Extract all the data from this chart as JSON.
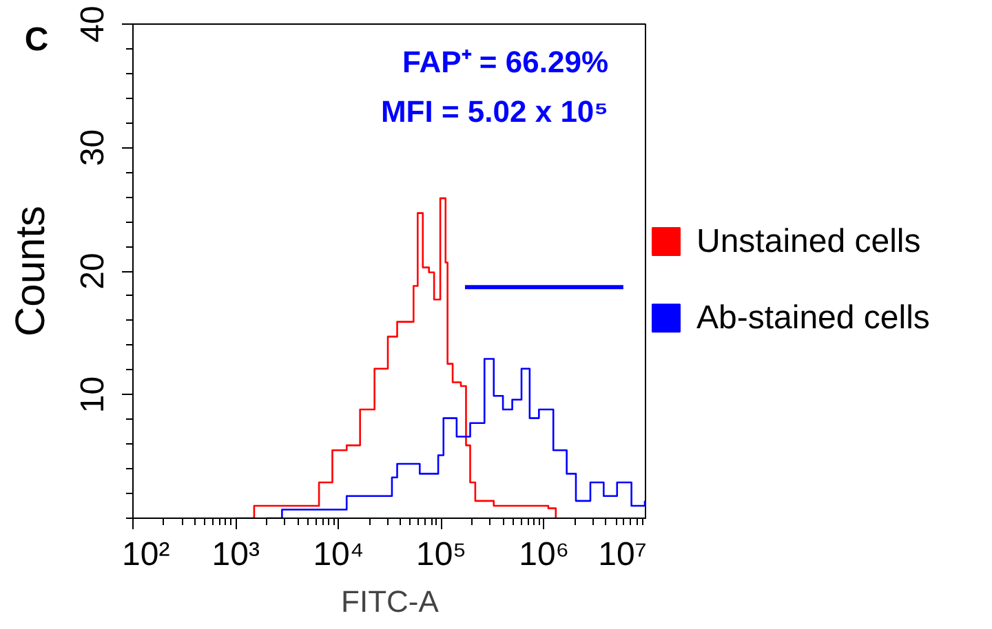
{
  "chart_data": {
    "type": "step",
    "xlabel": "FITC-A",
    "ylabel": "Counts",
    "annotations": [
      "C",
      "FAP⁺ = 66.29%",
      "MFI = 5.02 x 10⁵"
    ],
    "series": [
      {
        "name": "Unstained cells",
        "color": "#ff0000",
        "x": [
          1000,
          1510,
          6460,
          8710,
          12000,
          16200,
          22400,
          30200,
          37200,
          53700,
          58900,
          66100,
          75900,
          85100,
          97700,
          110000,
          115000,
          129000,
          155000,
          174000,
          191000,
          214000,
          324000,
          661000,
          1100000,
          1300000
        ],
        "values": [
          0,
          1.0,
          2.9,
          5.5,
          5.9,
          8.8,
          12.1,
          14.7,
          15.9,
          18.8,
          24.7,
          20.3,
          19.9,
          17.7,
          25.9,
          20.7,
          12.5,
          11.0,
          10.7,
          5.9,
          2.9,
          1.4,
          1.0,
          1.0,
          0.8,
          0
        ]
      },
      {
        "name": "Ab-stained cells",
        "color": "#0000ff",
        "x": [
          2000,
          2820,
          12000,
          33100,
          37200,
          61700,
          93300,
          105000,
          141000,
          191000,
          263000,
          324000,
          398000,
          490000,
          603000,
          724000,
          891000,
          1230000,
          1660000,
          2040000,
          2820000,
          3800000,
          5130000,
          7080000,
          9550000
        ],
        "values": [
          0,
          0.7,
          1.8,
          3.3,
          4.4,
          3.6,
          5.1,
          8.1,
          6.6,
          7.7,
          12.9,
          9.9,
          8.8,
          9.6,
          12.1,
          8.1,
          8.8,
          5.5,
          3.6,
          1.4,
          2.9,
          1.8,
          2.9,
          1.0,
          1.4
        ]
      },
      {
        "type": "line",
        "color": "#0000ff",
        "x": [
          170000,
          5900000
        ],
        "values": [
          18.7,
          18.7
        ]
      }
    ],
    "log": "x",
    "xlim": [
      100,
      10000000
    ],
    "xticks": [
      {
        "value": 100,
        "label": "10²"
      },
      {
        "value": 1000,
        "label": "10³"
      },
      {
        "value": 10000,
        "label": "10⁴"
      },
      {
        "value": 100000,
        "label": "10⁵"
      },
      {
        "value": 1000000,
        "label": "10⁶"
      },
      {
        "value": 10000000,
        "label": "10⁷"
      }
    ],
    "ylim": [
      0,
      40
    ],
    "yticks": [
      10,
      20,
      30,
      40
    ],
    "grid": false,
    "legend": "right"
  }
}
